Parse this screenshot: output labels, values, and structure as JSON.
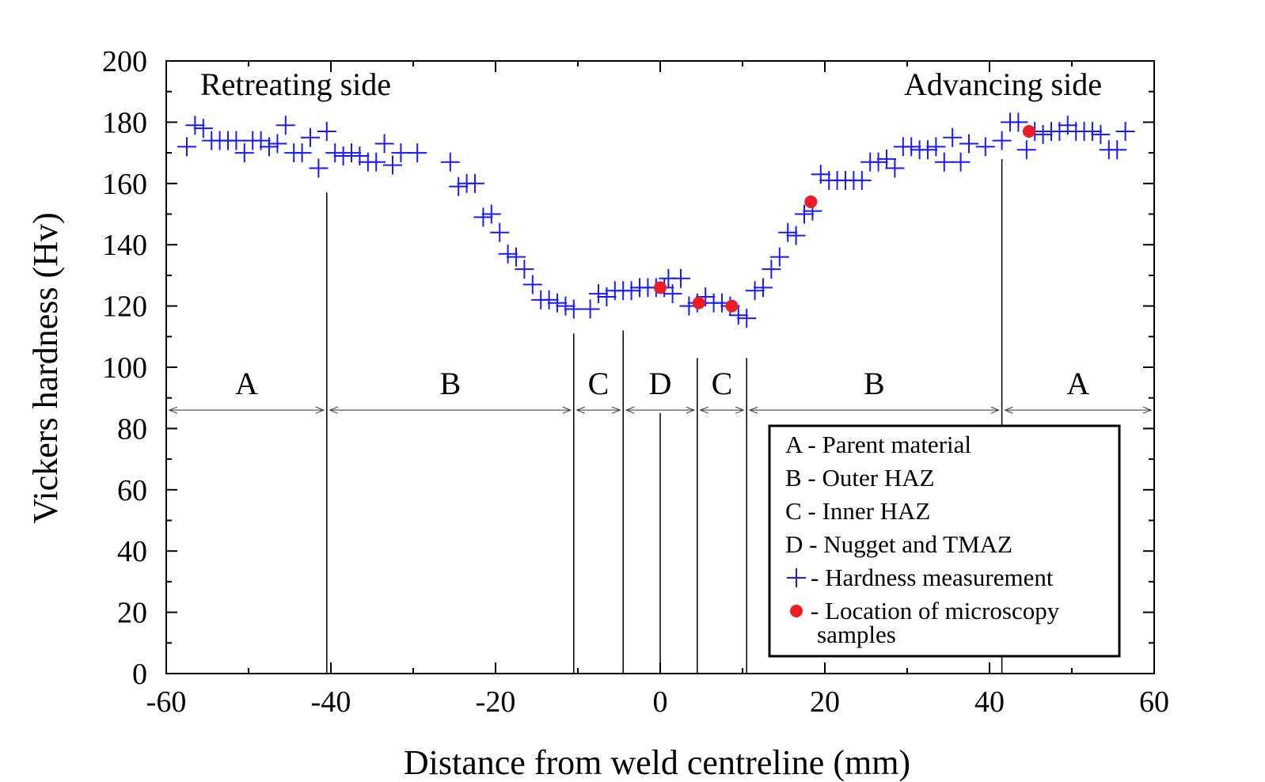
{
  "chart_data": {
    "type": "scatter",
    "xlabel": "Distance from weld centreline (mm)",
    "ylabel": "Vickers hardness (Hv)",
    "xlim": [
      -60,
      60
    ],
    "ylim": [
      0,
      200
    ],
    "x_ticks": [
      "-60",
      "-40",
      "-20",
      "0",
      "20",
      "40",
      "60"
    ],
    "y_ticks": [
      "0",
      "20",
      "40",
      "60",
      "80",
      "100",
      "120",
      "140",
      "160",
      "180",
      "200"
    ],
    "grid": false,
    "legend_position": "bottom-right",
    "annotations": {
      "retreating_side": "Retreating side",
      "advancing_side": "Advancing side"
    },
    "zone_boundaries": [
      -40.5,
      -10.5,
      -4.5,
      4.5,
      10.5,
      41.5
    ],
    "boundary_tops": [
      157,
      111,
      112,
      103,
      103,
      168
    ],
    "centre_line": {
      "x": 0,
      "top": 85
    },
    "zones": [
      {
        "label": "A",
        "x_start": -60,
        "x_end": -40.5
      },
      {
        "label": "B",
        "x_start": -40.5,
        "x_end": -10.5
      },
      {
        "label": "C",
        "x_start": -10.5,
        "x_end": -4.5
      },
      {
        "label": "D",
        "x_start": -4.5,
        "x_end": 4.5
      },
      {
        "label": "C",
        "x_start": 4.5,
        "x_end": 10.5
      },
      {
        "label": "B",
        "x_start": 10.5,
        "x_end": 41.5
      },
      {
        "label": "A",
        "x_start": 41.5,
        "x_end": 60
      }
    ],
    "zone_arrow_y": 86,
    "legend": [
      {
        "marker": "none",
        "label": "A - Parent material"
      },
      {
        "marker": "none",
        "label": "B - Outer HAZ"
      },
      {
        "marker": "none",
        "label": "C - Inner HAZ"
      },
      {
        "marker": "none",
        "label": "D - Nugget and TMAZ"
      },
      {
        "marker": "plus",
        "label": "- Hardness measurement"
      },
      {
        "marker": "dot",
        "label": "- Location of microscopy",
        "label_line2": "samples"
      }
    ],
    "series": [
      {
        "name": "Hardness measurement",
        "marker": "plus",
        "color": "#1a1aff",
        "points": [
          [
            -57.5,
            172
          ],
          [
            -56.5,
            179
          ],
          [
            -55.5,
            178
          ],
          [
            -54.5,
            174
          ],
          [
            -53.5,
            174
          ],
          [
            -52.5,
            174
          ],
          [
            -51.5,
            174
          ],
          [
            -50.5,
            170
          ],
          [
            -49.5,
            174
          ],
          [
            -48.5,
            174
          ],
          [
            -47.5,
            172
          ],
          [
            -46.5,
            173
          ],
          [
            -45.5,
            179
          ],
          [
            -44.5,
            170
          ],
          [
            -43.5,
            170
          ],
          [
            -42.5,
            175
          ],
          [
            -41.5,
            165
          ],
          [
            -40.5,
            177
          ],
          [
            -39.5,
            170
          ],
          [
            -38.5,
            169
          ],
          [
            -37.5,
            170
          ],
          [
            -36.5,
            169
          ],
          [
            -35.5,
            167
          ],
          [
            -34.5,
            167
          ],
          [
            -33.5,
            173
          ],
          [
            -32.5,
            166
          ],
          [
            -31.5,
            170
          ],
          [
            -29.5,
            170
          ],
          [
            -25.5,
            167
          ],
          [
            -24.5,
            159
          ],
          [
            -23.5,
            160
          ],
          [
            -22.5,
            160
          ],
          [
            -21.5,
            149
          ],
          [
            -20.5,
            150
          ],
          [
            -19.5,
            144
          ],
          [
            -18.5,
            137
          ],
          [
            -17.5,
            136
          ],
          [
            -16.5,
            132
          ],
          [
            -15.5,
            127
          ],
          [
            -14.5,
            122
          ],
          [
            -13.5,
            122
          ],
          [
            -12.5,
            121
          ],
          [
            -11.5,
            120
          ],
          [
            -10.5,
            119
          ],
          [
            -8.5,
            119
          ],
          [
            -7.5,
            124
          ],
          [
            -6.5,
            123
          ],
          [
            -5.5,
            125
          ],
          [
            -4.5,
            125
          ],
          [
            -3.5,
            125
          ],
          [
            -2.5,
            126
          ],
          [
            -1.5,
            126
          ],
          [
            -0.5,
            126
          ],
          [
            0.5,
            126
          ],
          [
            1.5,
            124
          ],
          [
            1.0,
            129
          ],
          [
            2.5,
            129
          ],
          [
            3.5,
            120
          ],
          [
            4.5,
            121
          ],
          [
            5.5,
            123
          ],
          [
            6.5,
            121
          ],
          [
            7.5,
            121
          ],
          [
            8.5,
            120
          ],
          [
            9.5,
            117
          ],
          [
            10.5,
            116
          ],
          [
            11.5,
            125
          ],
          [
            12.5,
            126
          ],
          [
            13.5,
            132
          ],
          [
            14.5,
            136
          ],
          [
            15.5,
            144
          ],
          [
            16.5,
            143
          ],
          [
            17.5,
            150
          ],
          [
            18.5,
            151
          ],
          [
            19.5,
            163
          ],
          [
            20.5,
            161
          ],
          [
            21.5,
            161
          ],
          [
            22.5,
            161
          ],
          [
            23.5,
            161
          ],
          [
            24.5,
            161
          ],
          [
            25.5,
            167
          ],
          [
            26.5,
            167
          ],
          [
            27.5,
            168
          ],
          [
            28.5,
            165
          ],
          [
            29.5,
            172
          ],
          [
            30.5,
            172
          ],
          [
            31.5,
            171
          ],
          [
            32.5,
            171
          ],
          [
            33.5,
            172
          ],
          [
            34.5,
            167
          ],
          [
            35.5,
            175
          ],
          [
            36.5,
            167
          ],
          [
            37.5,
            173
          ],
          [
            39.5,
            172
          ],
          [
            41.5,
            174
          ],
          [
            42.5,
            180
          ],
          [
            43.5,
            180
          ],
          [
            44.5,
            171
          ],
          [
            45.5,
            177
          ],
          [
            46.5,
            176
          ],
          [
            47.5,
            177
          ],
          [
            48.5,
            177
          ],
          [
            49.5,
            179
          ],
          [
            50.5,
            177
          ],
          [
            51.5,
            177
          ],
          [
            52.5,
            177
          ],
          [
            53.5,
            176
          ],
          [
            54.5,
            171
          ],
          [
            55.5,
            171
          ],
          [
            56.5,
            177
          ]
        ]
      },
      {
        "name": "Location of microscopy samples",
        "marker": "dot",
        "color": "#ee1c25",
        "points": [
          [
            0,
            126
          ],
          [
            4.7,
            121
          ],
          [
            8.7,
            120
          ],
          [
            18.3,
            154
          ],
          [
            44.8,
            177
          ]
        ]
      }
    ]
  }
}
